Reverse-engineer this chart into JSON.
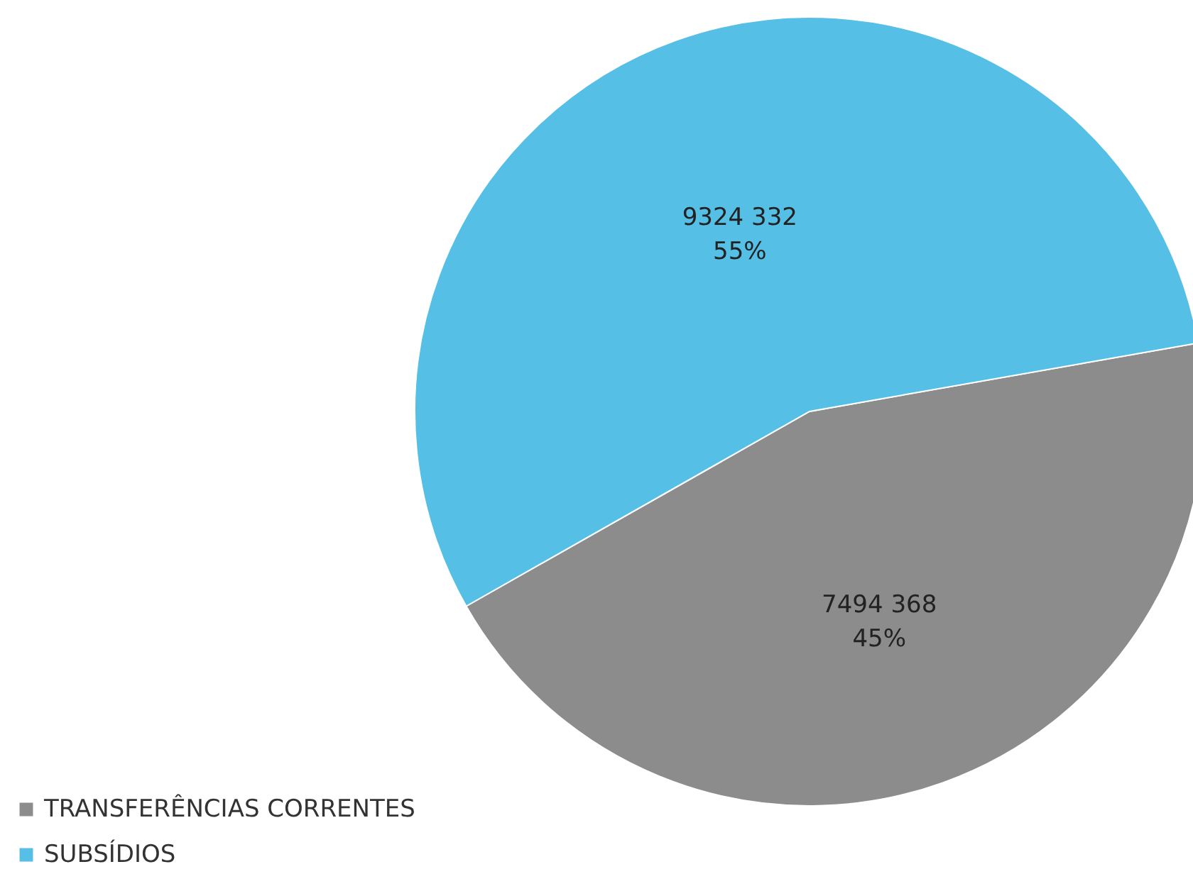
{
  "chart_data": {
    "type": "pie",
    "categories": [
      "TRANSFERÊNCIAS CORRENTES",
      "SUBSÍDIOS"
    ],
    "values": [
      7494368,
      9324332
    ],
    "colors": [
      "#8c8c8c",
      "#55bfe6"
    ],
    "value_labels": [
      "7494 368\n45%",
      "9324 332\n55%"
    ],
    "legend": "bottom left"
  }
}
